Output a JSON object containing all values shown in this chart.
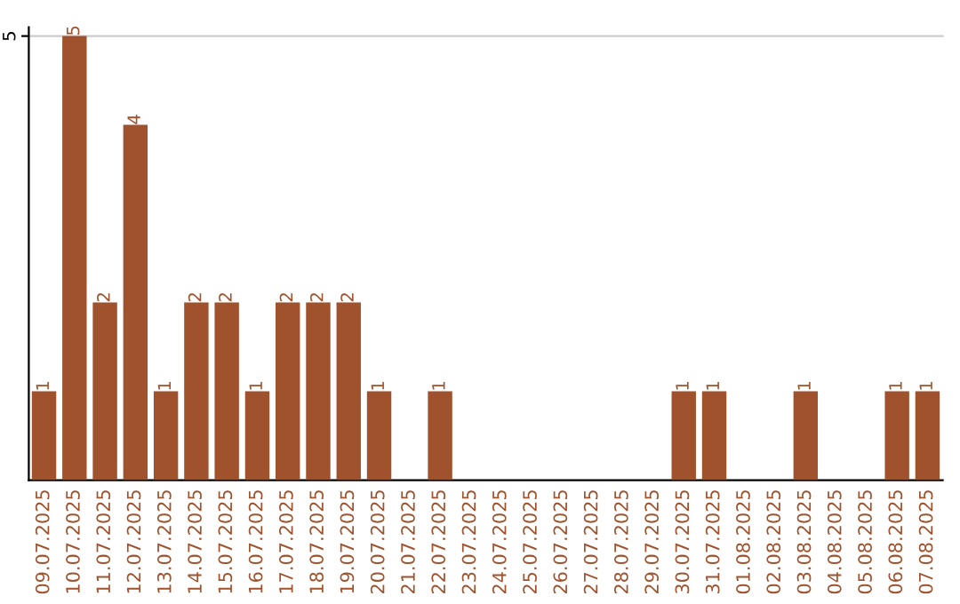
{
  "chart_data": {
    "type": "bar",
    "categories": [
      "09.07.2025",
      "10.07.2025",
      "11.07.2025",
      "12.07.2025",
      "13.07.2025",
      "14.07.2025",
      "15.07.2025",
      "16.07.2025",
      "17.07.2025",
      "18.07.2025",
      "19.07.2025",
      "20.07.2025",
      "21.07.2025",
      "22.07.2025",
      "23.07.2025",
      "24.07.2025",
      "25.07.2025",
      "26.07.2025",
      "27.07.2025",
      "28.07.2025",
      "29.07.2025",
      "30.07.2025",
      "31.07.2025",
      "01.08.2025",
      "02.08.2025",
      "03.08.2025",
      "04.08.2025",
      "05.08.2025",
      "06.08.2025",
      "07.08.2025"
    ],
    "values": [
      1,
      5,
      2,
      4,
      1,
      2,
      2,
      1,
      2,
      2,
      2,
      1,
      0,
      1,
      0,
      0,
      0,
      0,
      0,
      0,
      0,
      1,
      1,
      0,
      0,
      1,
      0,
      0,
      1,
      1
    ],
    "value_labels": [
      "1",
      "5",
      "2",
      "4",
      "1",
      "2",
      "2",
      "1",
      "2",
      "2",
      "2",
      "1",
      null,
      "1",
      null,
      null,
      null,
      null,
      null,
      null,
      null,
      "1",
      "1",
      null,
      null,
      "1",
      null,
      null,
      "1",
      "1"
    ],
    "color": "#a0522d",
    "ylim": [
      0,
      5.1
    ],
    "yticks": [
      5
    ],
    "grid": "y"
  }
}
